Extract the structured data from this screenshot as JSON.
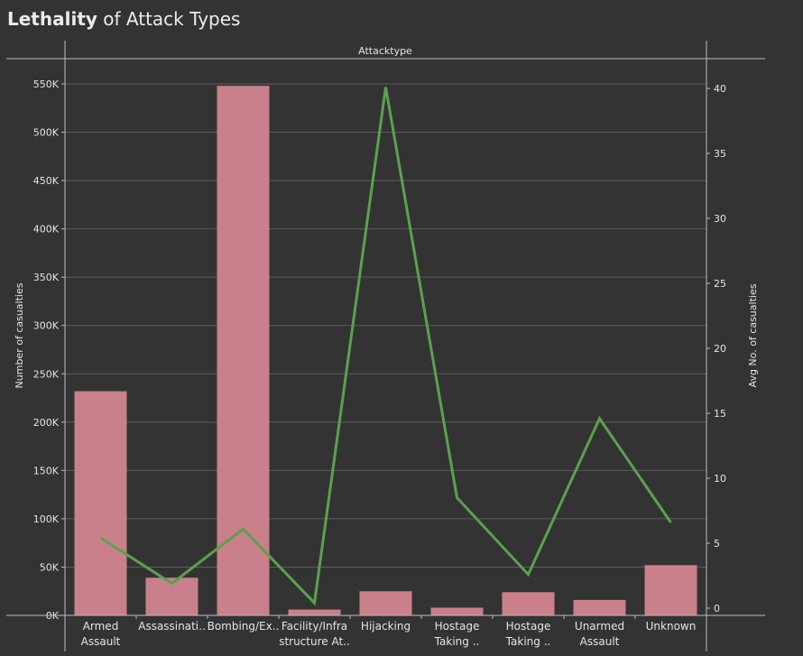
{
  "title": {
    "bold": "Lethality",
    "rest": "of Attack Types"
  },
  "chart_data": {
    "type": "bar",
    "column_header": "Attacktype",
    "categories": [
      [
        "Armed",
        "Assault"
      ],
      [
        "Assassinati.."
      ],
      [
        "Bombing/Ex.."
      ],
      [
        "Facility/Infra",
        "structure At.."
      ],
      [
        "Hijacking"
      ],
      [
        "Hostage",
        "Taking .."
      ],
      [
        "Hostage",
        "Taking .."
      ],
      [
        "Unarmed",
        "Assault"
      ],
      [
        "Unknown"
      ]
    ],
    "series": [
      {
        "type": "bar",
        "axis": "left",
        "color": "#c9808a",
        "values": [
          232000,
          39000,
          548000,
          6000,
          25000,
          8000,
          24000,
          16000,
          52000
        ]
      },
      {
        "type": "line",
        "axis": "right",
        "color": "#5aa24d",
        "values": [
          5.4,
          1.9,
          6.1,
          0.4,
          40.1,
          8.5,
          2.6,
          14.6,
          6.6
        ]
      }
    ],
    "ylabel": "Number of casualties",
    "y2label": "Avg No. of casualties",
    "ylim": [
      0,
      560000
    ],
    "y2lim": [
      0,
      42.5
    ],
    "yticks": [
      0,
      50000,
      100000,
      150000,
      200000,
      250000,
      300000,
      350000,
      400000,
      450000,
      500000,
      550000
    ],
    "ytick_labels": [
      "0K",
      "50K",
      "100K",
      "150K",
      "200K",
      "250K",
      "300K",
      "350K",
      "400K",
      "450K",
      "500K",
      "550K"
    ],
    "y2ticks": [
      0,
      5,
      10,
      15,
      20,
      25,
      30,
      35,
      40
    ],
    "y2tick_labels": [
      "0",
      "5",
      "10",
      "15",
      "20",
      "25",
      "30",
      "35",
      "40"
    ],
    "grid": true
  }
}
